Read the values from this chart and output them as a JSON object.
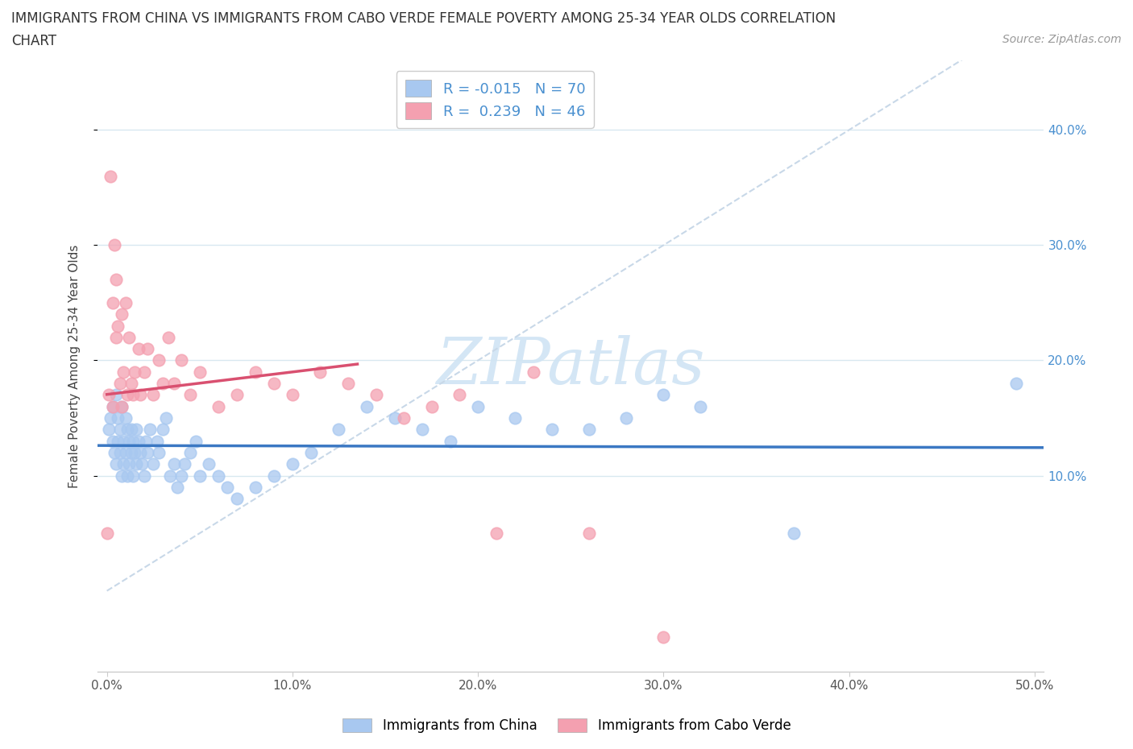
{
  "title_line1": "IMMIGRANTS FROM CHINA VS IMMIGRANTS FROM CABO VERDE FEMALE POVERTY AMONG 25-34 YEAR OLDS CORRELATION",
  "title_line2": "CHART",
  "source_text": "Source: ZipAtlas.com",
  "ylabel": "Female Poverty Among 25-34 Year Olds",
  "xlim": [
    -0.005,
    0.505
  ],
  "ylim": [
    -0.07,
    0.46
  ],
  "xticks": [
    0.0,
    0.1,
    0.2,
    0.3,
    0.4,
    0.5
  ],
  "yticks": [
    0.1,
    0.2,
    0.3,
    0.4
  ],
  "ytick_labels": [
    "10.0%",
    "20.0%",
    "30.0%",
    "40.0%"
  ],
  "xtick_labels": [
    "0.0%",
    "10.0%",
    "20.0%",
    "30.0%",
    "40.0%",
    "50.0%"
  ],
  "legend_label1": "Immigrants from China",
  "legend_label2": "Immigrants from Cabo Verde",
  "china_color": "#a8c8f0",
  "cabo_verde_color": "#f4a0b0",
  "china_edge_color": "#7aaad8",
  "cabo_edge_color": "#e07090",
  "china_trend_color": "#3b78c3",
  "cabo_verde_trend_color": "#d95070",
  "diagonal_color": "#c8d8e8",
  "watermark_color": "#d0e4f4",
  "R_china": -0.015,
  "N_china": 70,
  "R_cabo": 0.239,
  "N_cabo": 46,
  "china_x": [
    0.001,
    0.002,
    0.003,
    0.003,
    0.004,
    0.005,
    0.005,
    0.006,
    0.006,
    0.007,
    0.007,
    0.008,
    0.008,
    0.009,
    0.009,
    0.01,
    0.01,
    0.011,
    0.011,
    0.012,
    0.012,
    0.013,
    0.013,
    0.014,
    0.014,
    0.015,
    0.016,
    0.016,
    0.017,
    0.018,
    0.019,
    0.02,
    0.021,
    0.022,
    0.023,
    0.025,
    0.027,
    0.028,
    0.03,
    0.032,
    0.034,
    0.036,
    0.038,
    0.04,
    0.042,
    0.045,
    0.048,
    0.05,
    0.055,
    0.06,
    0.065,
    0.07,
    0.08,
    0.09,
    0.1,
    0.11,
    0.125,
    0.14,
    0.155,
    0.17,
    0.185,
    0.2,
    0.22,
    0.24,
    0.26,
    0.28,
    0.3,
    0.32,
    0.37,
    0.49
  ],
  "china_y": [
    0.14,
    0.15,
    0.13,
    0.16,
    0.12,
    0.17,
    0.11,
    0.15,
    0.13,
    0.14,
    0.12,
    0.16,
    0.1,
    0.13,
    0.11,
    0.15,
    0.12,
    0.14,
    0.1,
    0.13,
    0.11,
    0.12,
    0.14,
    0.1,
    0.13,
    0.12,
    0.11,
    0.14,
    0.13,
    0.12,
    0.11,
    0.1,
    0.13,
    0.12,
    0.14,
    0.11,
    0.13,
    0.12,
    0.14,
    0.15,
    0.1,
    0.11,
    0.09,
    0.1,
    0.11,
    0.12,
    0.13,
    0.1,
    0.11,
    0.1,
    0.09,
    0.08,
    0.09,
    0.1,
    0.11,
    0.12,
    0.14,
    0.16,
    0.15,
    0.14,
    0.13,
    0.16,
    0.15,
    0.14,
    0.14,
    0.15,
    0.17,
    0.16,
    0.05,
    0.18
  ],
  "cabo_x": [
    0.0,
    0.001,
    0.002,
    0.003,
    0.003,
    0.004,
    0.005,
    0.005,
    0.006,
    0.007,
    0.008,
    0.008,
    0.009,
    0.01,
    0.011,
    0.012,
    0.013,
    0.014,
    0.015,
    0.017,
    0.018,
    0.02,
    0.022,
    0.025,
    0.028,
    0.03,
    0.033,
    0.036,
    0.04,
    0.045,
    0.05,
    0.06,
    0.07,
    0.08,
    0.09,
    0.1,
    0.115,
    0.13,
    0.145,
    0.16,
    0.175,
    0.19,
    0.21,
    0.23,
    0.26,
    0.3
  ],
  "cabo_y": [
    0.05,
    0.17,
    0.36,
    0.16,
    0.25,
    0.3,
    0.27,
    0.22,
    0.23,
    0.18,
    0.16,
    0.24,
    0.19,
    0.25,
    0.17,
    0.22,
    0.18,
    0.17,
    0.19,
    0.21,
    0.17,
    0.19,
    0.21,
    0.17,
    0.2,
    0.18,
    0.22,
    0.18,
    0.2,
    0.17,
    0.19,
    0.16,
    0.17,
    0.19,
    0.18,
    0.17,
    0.19,
    0.18,
    0.17,
    0.15,
    0.16,
    0.17,
    0.05,
    0.19,
    0.05,
    -0.04
  ],
  "cabo_trend_xmin": 0.0,
  "cabo_trend_xmax": 0.135,
  "china_trend_yval": 0.107
}
